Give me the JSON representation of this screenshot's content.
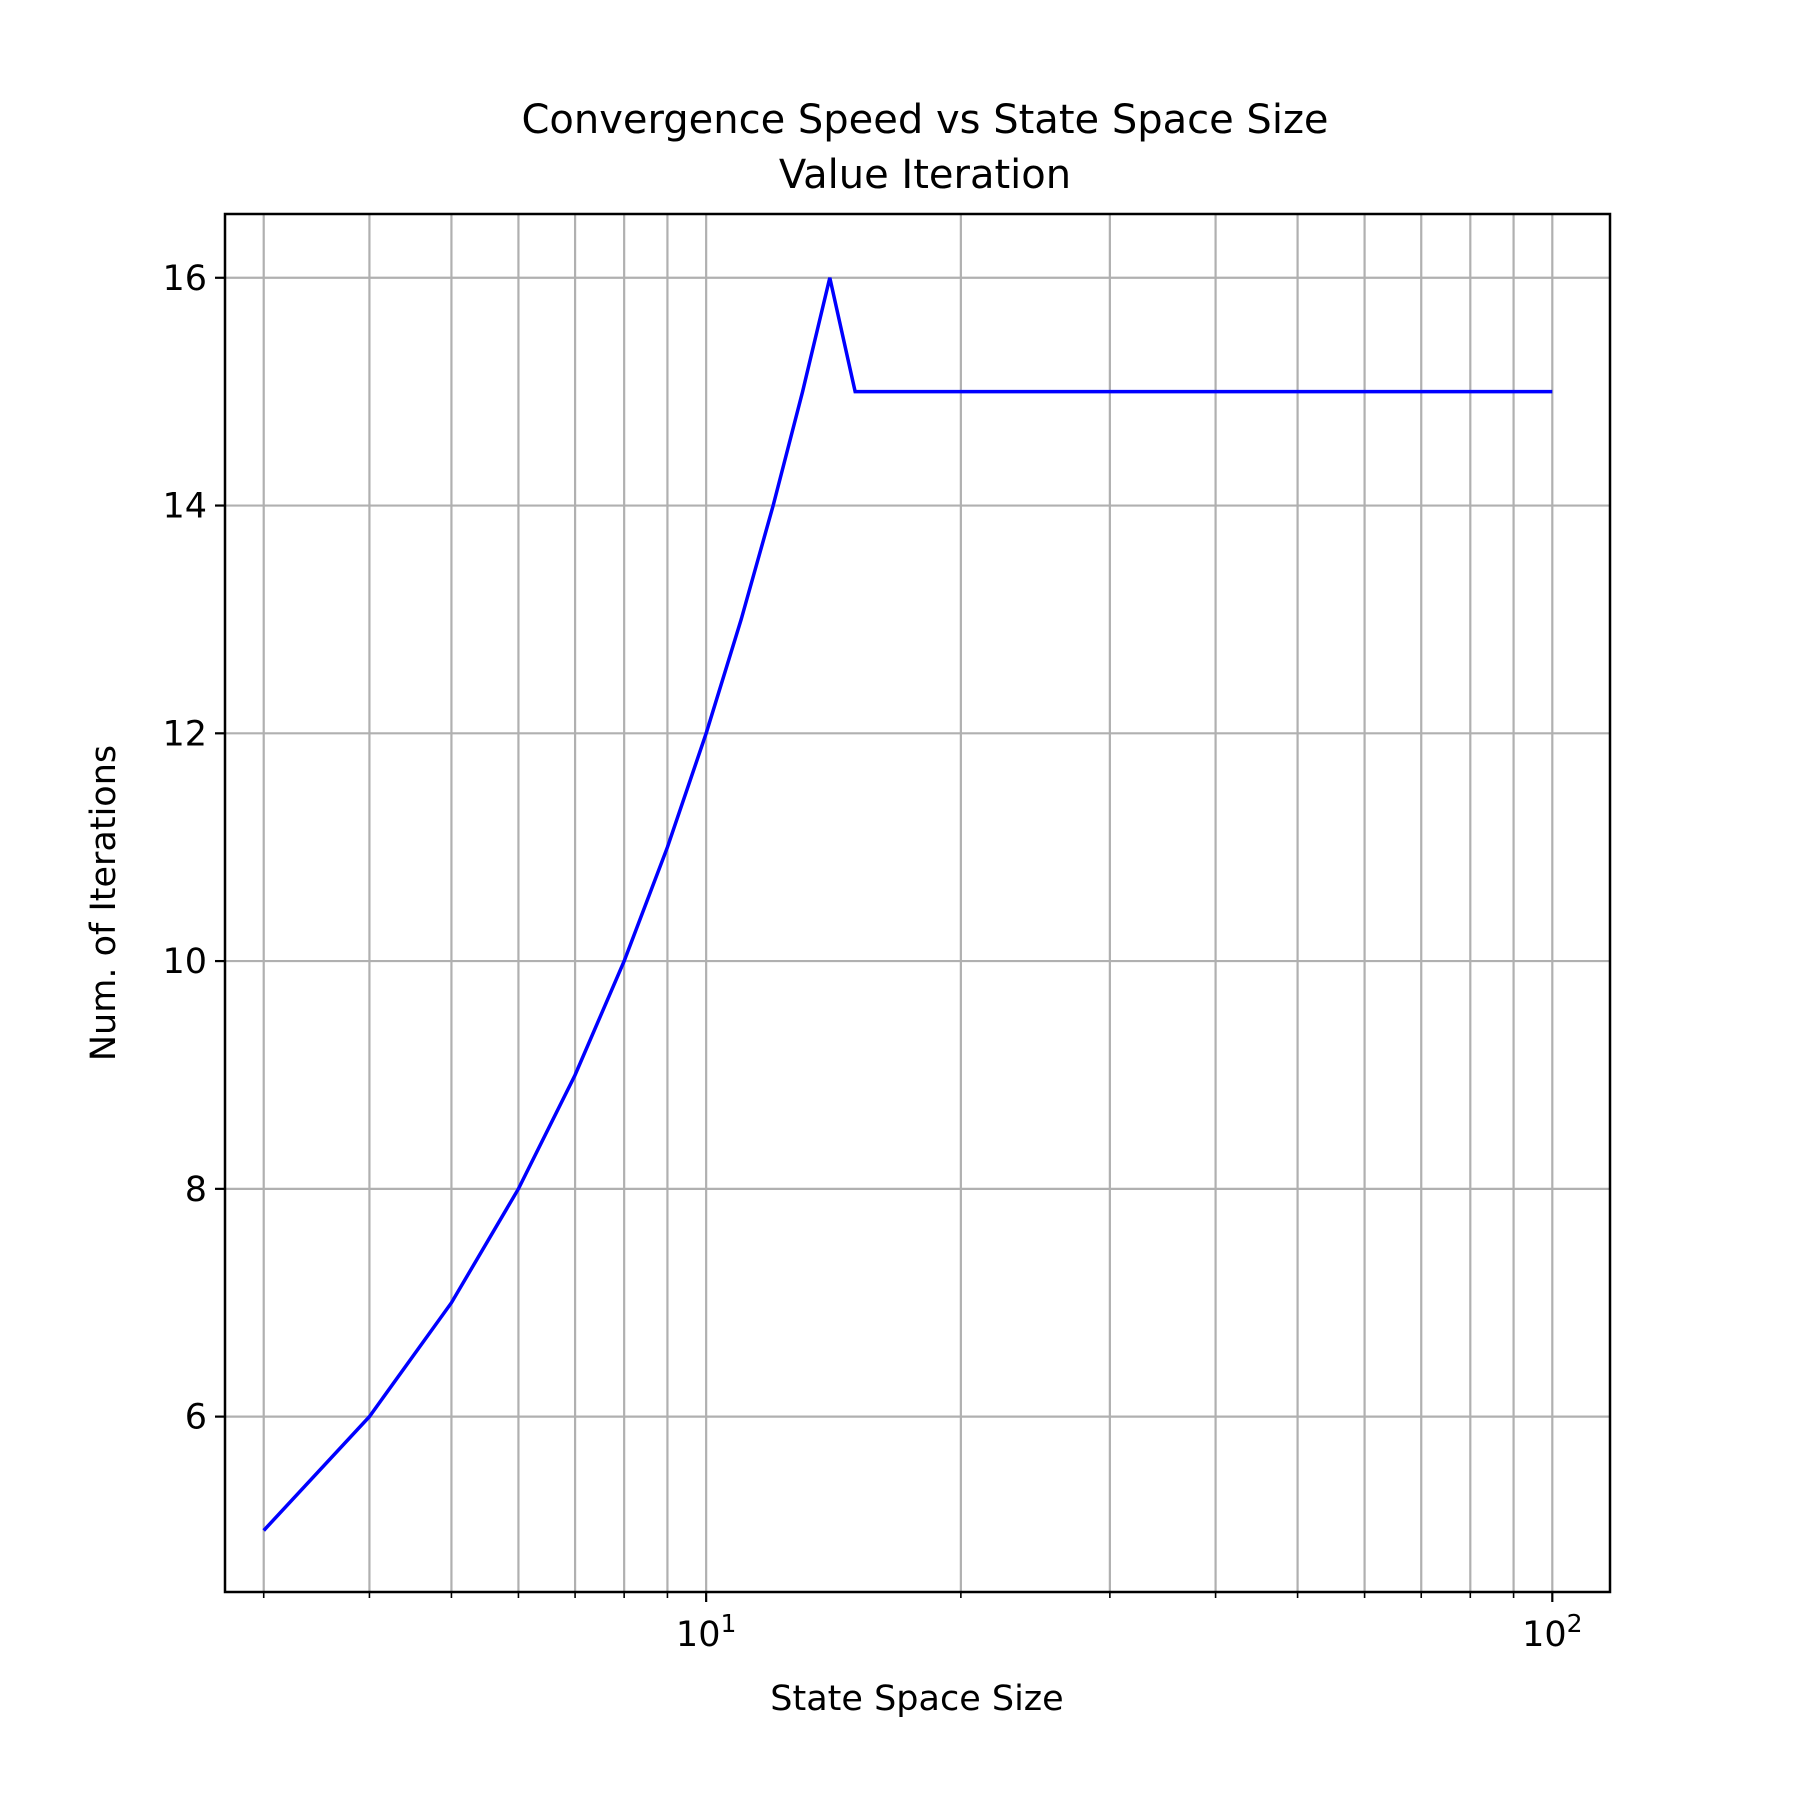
{
  "chart_data": {
    "type": "line",
    "title": "Convergence Speed vs State Space Size",
    "subtitle": "Value Iteration",
    "xlabel": "State Space Size",
    "ylabel": "Num. of Iterations",
    "xscale": "log",
    "xlim": [
      2.7,
      117
    ],
    "ylim": [
      4.46,
      16.56
    ],
    "grid": true,
    "x_major_ticks": [
      {
        "value": 10,
        "base": "10",
        "exp": "1"
      },
      {
        "value": 100,
        "base": "10",
        "exp": "2"
      }
    ],
    "y_ticks": [
      6,
      8,
      10,
      12,
      14,
      16
    ],
    "series": [
      {
        "color": "#0000ff",
        "x": [
          3,
          4,
          5,
          6,
          7,
          8,
          9,
          10,
          11,
          12,
          13,
          14,
          15,
          20,
          30,
          40,
          50,
          60,
          70,
          80,
          90,
          100
        ],
        "y": [
          5,
          6,
          7,
          8,
          9,
          10,
          11,
          12,
          13,
          14,
          15,
          16,
          15,
          15,
          15,
          15,
          15,
          15,
          15,
          15,
          15,
          15
        ]
      }
    ]
  }
}
